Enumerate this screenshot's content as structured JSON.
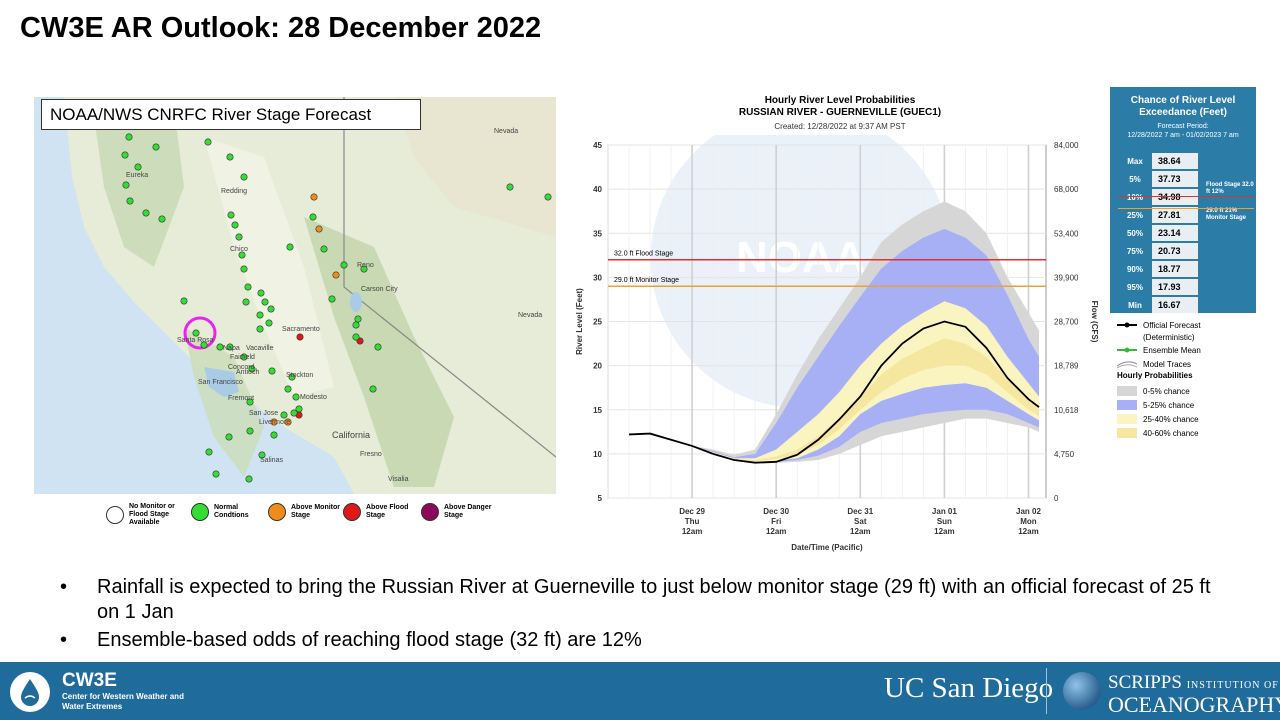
{
  "slide": {
    "title": "CW3E AR Outlook: 28 December 2022"
  },
  "map": {
    "label": "NOAA/NWS CNRFC River Stage Forecast",
    "places": [
      "Nevada",
      "Eureka",
      "Redding",
      "Chico",
      "Reno",
      "Carson City",
      "Nevada",
      "Santa Rosa",
      "Napa",
      "Vacaville",
      "Fairfield",
      "Sacramento",
      "Concord",
      "Antioch",
      "San Francisco",
      "Stockton",
      "Fremont",
      "Livermore",
      "Modesto",
      "San Jose",
      "California",
      "Fresno",
      "Salinas",
      "Visalia"
    ],
    "legend": [
      {
        "label": "No Monitor or Flood Stage Available",
        "color": "#ffffff"
      },
      {
        "label": "Normal Condtions",
        "color": "#33dd33"
      },
      {
        "label": "Above Monitor Stage",
        "color": "#f08c1a"
      },
      {
        "label": "Above Flood Stage",
        "color": "#e01818"
      },
      {
        "label": "Above Danger Stage",
        "color": "#8b0a5a"
      }
    ]
  },
  "chart": {
    "title_line1": "Hourly River Level Probabilities",
    "title_line2": "RUSSIAN RIVER - GUERNEVILLE (GUEC1)",
    "created": "Created: 12/28/2022 at 9:37 AM PST",
    "watermark": "NOAA",
    "flood_stage_label": "32.0 ft Flood Stage",
    "monitor_stage_label": "29.0 ft Monitor Stage"
  },
  "chart_data": {
    "type": "area",
    "title": "Hourly River Level Probabilities",
    "subtitle": "RUSSIAN RIVER - GUERNEVILLE (GUEC1)",
    "xlabel": "Date/Time (Pacific)",
    "ylabel": "River Level (Feet)",
    "y2label": "Flow (CFS)",
    "ylim": [
      5,
      45
    ],
    "yticks": [
      5,
      10,
      15,
      20,
      25,
      30,
      35,
      40,
      45
    ],
    "y2ticks": [
      "0",
      "4,750",
      "10,618",
      "18,789",
      "28,700",
      "39,900",
      "53,400",
      "68,000",
      "84,000"
    ],
    "xticks": [
      {
        "t": 24,
        "lines": [
          "Dec 29",
          "Thu",
          "12am"
        ]
      },
      {
        "t": 48,
        "lines": [
          "Dec 30",
          "Fri",
          "12am"
        ]
      },
      {
        "t": 72,
        "lines": [
          "Dec 31",
          "Sat",
          "12am"
        ]
      },
      {
        "t": 96,
        "lines": [
          "Jan 01",
          "Sun",
          "12am"
        ]
      },
      {
        "t": 120,
        "lines": [
          "Jan 02",
          "Mon",
          "12am"
        ]
      }
    ],
    "xlim": [
      0,
      125
    ],
    "thresholds": [
      {
        "name": "Flood Stage",
        "value": 32.0,
        "color": "#e03030"
      },
      {
        "name": "Monitor Stage",
        "value": 29.0,
        "color": "#f0a030"
      }
    ],
    "x": [
      0,
      6,
      12,
      18,
      24,
      30,
      36,
      42,
      48,
      54,
      60,
      66,
      72,
      78,
      84,
      90,
      96,
      102,
      108,
      114,
      120,
      123
    ],
    "official": [
      null,
      12.2,
      12.3,
      11.6,
      10.9,
      10.0,
      9.3,
      9.0,
      9.1,
      9.9,
      11.6,
      13.9,
      16.5,
      20.0,
      22.5,
      24.2,
      25.0,
      24.4,
      22.0,
      18.6,
      16.2,
      15.3
    ],
    "bands": [
      {
        "name": "0-5% chance",
        "color": "#d6d6d6",
        "upper": [
          null,
          null,
          null,
          null,
          10.9,
          10.5,
          9.9,
          10.5,
          14.5,
          19.0,
          23.0,
          26.5,
          30.0,
          34.0,
          36.0,
          37.5,
          38.6,
          37.5,
          35.0,
          30.0,
          26.0,
          24.0
        ],
        "lower": [
          null,
          null,
          null,
          null,
          10.9,
          10.0,
          9.3,
          9.0,
          9.0,
          9.1,
          9.3,
          10.0,
          11.0,
          12.0,
          12.5,
          13.0,
          13.5,
          14.0,
          14.0,
          13.5,
          13.0,
          12.5
        ]
      },
      {
        "name": "5-25% chance",
        "color": "#a8b0f5",
        "upper": [
          null,
          null,
          null,
          null,
          10.9,
          10.3,
          9.6,
          10.0,
          13.5,
          17.5,
          21.0,
          24.5,
          27.8,
          31.0,
          33.0,
          34.5,
          35.5,
          34.5,
          32.5,
          28.0,
          23.0,
          21.0
        ],
        "lower": [
          null,
          null,
          null,
          null,
          10.9,
          10.0,
          9.3,
          9.0,
          9.1,
          9.3,
          9.8,
          10.8,
          12.5,
          13.5,
          14.0,
          14.5,
          14.8,
          15.0,
          15.0,
          14.5,
          13.5,
          13.0
        ]
      },
      {
        "name": "25-40% chance",
        "color": "#faf5c0",
        "upper": [
          null,
          null,
          null,
          null,
          10.9,
          10.2,
          9.5,
          9.5,
          10.5,
          12.5,
          14.5,
          17.0,
          20.0,
          22.5,
          24.5,
          26.0,
          27.3,
          26.5,
          24.5,
          21.0,
          18.0,
          16.5
        ],
        "lower": [
          null,
          null,
          null,
          null,
          10.9,
          10.0,
          9.3,
          9.1,
          9.2,
          9.5,
          10.5,
          12.0,
          14.5,
          16.0,
          16.8,
          17.5,
          17.8,
          18.0,
          17.5,
          16.0,
          14.5,
          13.8
        ]
      },
      {
        "name": "40-60% chance",
        "color": "#f5e6a0",
        "upper": [
          null,
          null,
          null,
          null,
          10.9,
          10.1,
          9.4,
          9.3,
          9.7,
          10.5,
          12.0,
          14.0,
          16.5,
          19.0,
          20.8,
          22.0,
          23.1,
          22.5,
          21.0,
          18.5,
          16.0,
          15.0
        ],
        "lower": [
          null,
          null,
          null,
          null,
          10.9,
          10.0,
          9.3,
          9.2,
          9.4,
          9.9,
          11.0,
          12.8,
          15.0,
          17.0,
          18.5,
          19.5,
          20.0,
          20.0,
          19.0,
          17.0,
          15.0,
          14.3
        ]
      }
    ],
    "exceedance": {
      "title": "Chance of River Level Exceedance (Feet)",
      "period_label": "Forecast Period:",
      "period": "12/28/2022 7 am - 01/02/2023 7 am",
      "rows": [
        {
          "label": "Max",
          "value": "38.64"
        },
        {
          "label": "5%",
          "value": "37.73"
        },
        {
          "label": "10%",
          "value": "34.98"
        },
        {
          "label": "25%",
          "value": "27.81"
        },
        {
          "label": "50%",
          "value": "23.14"
        },
        {
          "label": "75%",
          "value": "20.73"
        },
        {
          "label": "90%",
          "value": "18.77"
        },
        {
          "label": "95%",
          "value": "17.93"
        },
        {
          "label": "Min",
          "value": "16.67"
        }
      ],
      "flood_note": "Flood Stage 32.0 ft    12%",
      "monitor_note": "29.0 ft    21% Monitor Stage"
    },
    "legend": {
      "official": "Official Forecast",
      "official_sub": "(Deterministic)",
      "ensemble": "Ensemble Mean",
      "traces": "Model Traces",
      "hourly_head": "Hourly Probabilities"
    }
  },
  "bullets": [
    "Rainfall is expected to bring the Russian River at Guerneville to just below monitor stage (29 ft) with an official forecast of 25 ft on 1 Jan",
    "Ensemble-based odds of reaching flood stage (32 ft) are 12%"
  ],
  "footer": {
    "cw3e": "CW3E",
    "cw3e_sub": "Center for Western Weather and Water Extremes",
    "ucsd": "UC San Diego",
    "scripps_1": "SCRIPPS",
    "scripps_1b": "INSTITUTION OF",
    "scripps_2": "OCEANOGRAPHY"
  },
  "colors": {
    "footer_bg": "#1f6b9c",
    "official": "#000000",
    "ensemble": "#33bb33",
    "flood": "#e03030",
    "monitor": "#f0a030",
    "highlight_circle": "#ee22ee"
  }
}
